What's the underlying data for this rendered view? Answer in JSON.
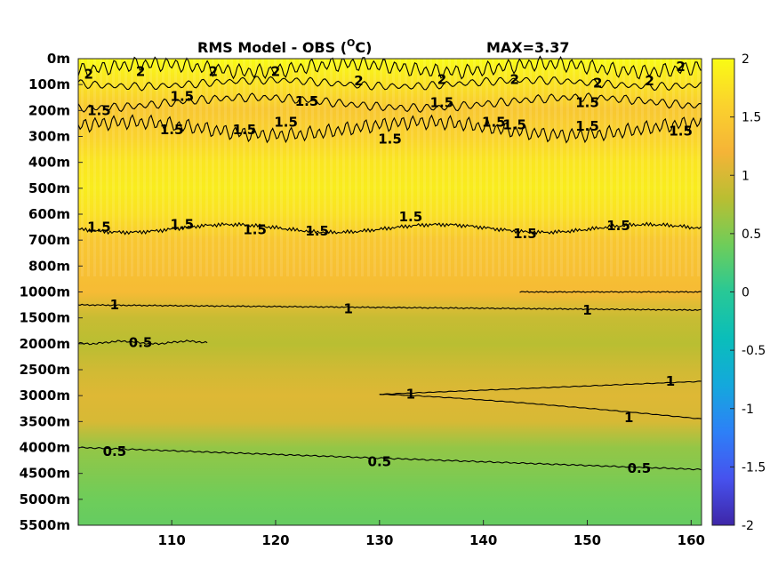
{
  "chart_data": {
    "type": "heatmap",
    "title_main": "RMS Model - OBS (",
    "title_sup": "O",
    "title_unit": "C)",
    "max_label": "MAX=3.37",
    "xlabel": "",
    "ylabel": "",
    "xlim": [
      101,
      161
    ],
    "x_ticks": [
      110,
      120,
      130,
      140,
      150,
      160
    ],
    "x_tick_labels": [
      "110",
      "120",
      "130",
      "140",
      "150",
      "160"
    ],
    "depth_levels": [
      "0m",
      "100m",
      "200m",
      "300m",
      "400m",
      "500m",
      "600m",
      "700m",
      "800m",
      "1000m",
      "1500m",
      "2000m",
      "2500m",
      "3000m",
      "3500m",
      "4000m",
      "4500m",
      "5000m",
      "5500m"
    ],
    "colorbar": {
      "range": [
        -2,
        2
      ],
      "ticks": [
        2,
        1.5,
        1,
        0.5,
        0,
        -0.5,
        -1,
        -1.5,
        -2
      ],
      "tick_labels": [
        "2",
        "1.5",
        "1",
        "0.5",
        "0",
        "-0.5",
        "-1",
        "-1.5",
        "-2"
      ]
    },
    "field_profile": {
      "level_index": [
        0,
        1,
        2,
        3,
        4,
        5,
        6,
        7,
        8,
        9,
        10,
        11,
        12,
        13,
        14,
        15,
        16,
        17,
        18
      ],
      "values": [
        2.1,
        1.75,
        1.45,
        1.6,
        1.8,
        1.85,
        1.75,
        1.45,
        1.38,
        1.3,
        0.9,
        0.8,
        0.95,
        1.05,
        1.0,
        0.6,
        0.5,
        0.4,
        0.35
      ]
    },
    "contours": [
      {
        "level": 2,
        "label": "2",
        "label_positions": [
          {
            "x": 102,
            "lev": 0.6
          },
          {
            "x": 107,
            "lev": 0.5
          },
          {
            "x": 114,
            "lev": 0.5
          },
          {
            "x": 120,
            "lev": 0.5
          },
          {
            "x": 128,
            "lev": 0.85
          },
          {
            "x": 136,
            "lev": 0.8
          },
          {
            "x": 143,
            "lev": 0.8
          },
          {
            "x": 151,
            "lev": 0.95
          },
          {
            "x": 156,
            "lev": 0.85
          },
          {
            "x": 159,
            "lev": 0.3
          }
        ]
      },
      {
        "level": 1.5,
        "label": "1.5",
        "label_positions": [
          {
            "x": 103,
            "lev": 2.0
          },
          {
            "x": 111,
            "lev": 1.45
          },
          {
            "x": 110,
            "lev": 2.75
          },
          {
            "x": 117,
            "lev": 2.75
          },
          {
            "x": 121,
            "lev": 2.45
          },
          {
            "x": 123,
            "lev": 1.65
          },
          {
            "x": 131,
            "lev": 3.1
          },
          {
            "x": 136,
            "lev": 1.7
          },
          {
            "x": 141,
            "lev": 2.45
          },
          {
            "x": 143,
            "lev": 2.55
          },
          {
            "x": 150,
            "lev": 1.7
          },
          {
            "x": 150,
            "lev": 2.6
          },
          {
            "x": 159,
            "lev": 2.8
          },
          {
            "x": 103,
            "lev": 6.5
          },
          {
            "x": 111,
            "lev": 6.4
          },
          {
            "x": 118,
            "lev": 6.6
          },
          {
            "x": 124,
            "lev": 6.65
          },
          {
            "x": 133,
            "lev": 6.1
          },
          {
            "x": 144,
            "lev": 6.75
          },
          {
            "x": 153,
            "lev": 6.45
          }
        ]
      },
      {
        "level": 1,
        "label": "1",
        "label_positions": [
          {
            "x": 104.5,
            "lev": 9.5
          },
          {
            "x": 127,
            "lev": 9.65
          },
          {
            "x": 150,
            "lev": 9.7
          },
          {
            "x": 133,
            "lev": 12.95
          },
          {
            "x": 158,
            "lev": 12.45
          },
          {
            "x": 154,
            "lev": 13.85
          }
        ]
      },
      {
        "level": 0.5,
        "label": "0.5",
        "label_positions": [
          {
            "x": 107,
            "lev": 10.95
          },
          {
            "x": 104.5,
            "lev": 15.15
          },
          {
            "x": 130,
            "lev": 15.55
          },
          {
            "x": 155,
            "lev": 15.8
          }
        ]
      }
    ]
  }
}
